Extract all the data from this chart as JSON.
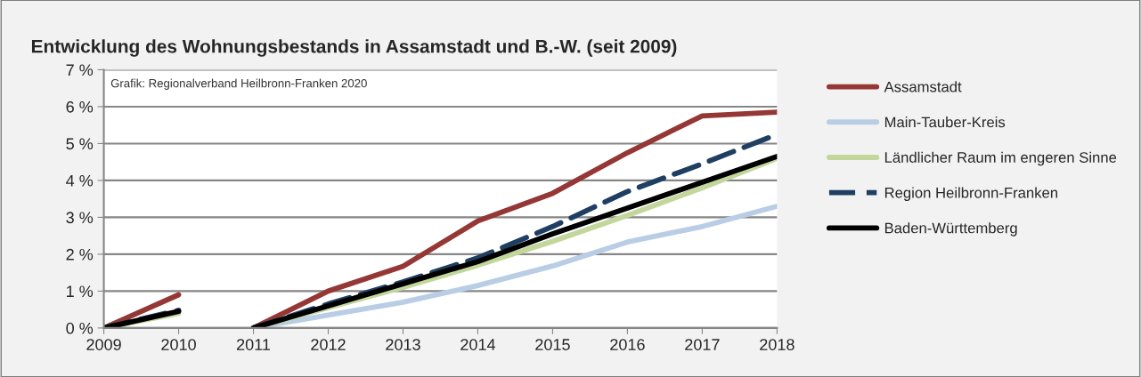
{
  "chart_data": {
    "type": "line",
    "title": "Entwicklung des Wohnungsbestands in Assamstadt und B.-W. (seit 2009)",
    "annotations": [
      "Grafik: Regionalverband Heilbronn-Franken 2020"
    ],
    "x": [
      2009,
      2010,
      2010.5,
      2011,
      2012,
      2013,
      2014,
      2015,
      2016,
      2017,
      2018
    ],
    "series": [
      {
        "name": "Assamstadt",
        "color": "#953735",
        "line_style": "solid",
        "values": [
          0,
          0.9,
          null,
          0,
          1.0,
          1.67,
          2.9,
          3.65,
          4.75,
          5.75,
          5.85
        ]
      },
      {
        "name": "Main-Tauber-Kreis",
        "color": "#b9cde5",
        "line_style": "solid",
        "values": [
          null,
          null,
          null,
          0,
          0.35,
          0.7,
          1.15,
          1.68,
          2.33,
          2.75,
          3.3
        ]
      },
      {
        "name": "Ländlicher Raum im engeren Sinne",
        "color": "#c3d69b",
        "line_style": "solid",
        "values": [
          0,
          0.4,
          null,
          0,
          0.55,
          1.1,
          1.7,
          2.35,
          3.05,
          3.8,
          4.6
        ]
      },
      {
        "name": "Region Heilbronn-Franken",
        "color": "#1f3f62",
        "line_style": "dashed",
        "values": [
          0,
          0.48,
          null,
          0,
          0.65,
          1.25,
          1.9,
          2.75,
          3.7,
          4.45,
          5.25
        ]
      },
      {
        "name": "Baden-Württemberg",
        "color": "#000000",
        "line_style": "solid",
        "values": [
          0,
          0.45,
          null,
          0,
          0.6,
          1.2,
          1.8,
          2.55,
          3.25,
          3.95,
          4.65
        ]
      }
    ],
    "xlim": [
      2009,
      2018
    ],
    "xticks": [
      2009,
      2010,
      2011,
      2012,
      2013,
      2014,
      2015,
      2016,
      2017,
      2018
    ],
    "ylim": [
      0,
      7
    ],
    "yticks": [
      {
        "value": 0,
        "label": "0 %"
      },
      {
        "value": 1,
        "label": "1 %"
      },
      {
        "value": 2,
        "label": "2 %"
      },
      {
        "value": 3,
        "label": "3 %"
      },
      {
        "value": 4,
        "label": "4 %"
      },
      {
        "value": 5,
        "label": "5 %"
      },
      {
        "value": 6,
        "label": "6 %"
      },
      {
        "value": 7,
        "label": "7 %"
      }
    ],
    "grid": "y",
    "legend": "right",
    "marker": "none"
  }
}
